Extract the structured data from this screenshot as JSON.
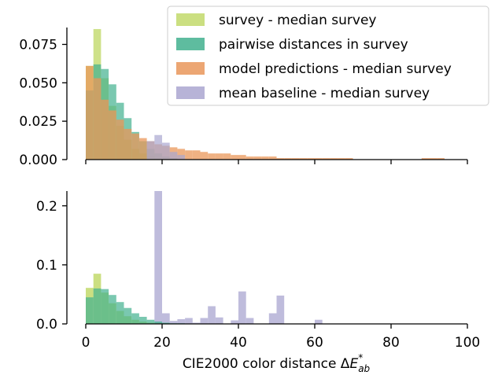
{
  "chart_data": [
    {
      "type": "histogram",
      "panel": "top",
      "bin_width": 2,
      "x_range": [
        0,
        100
      ],
      "ylim": [
        0,
        0.086
      ],
      "yticks": [
        0.0,
        0.025,
        0.05,
        0.075
      ],
      "ytick_labels": [
        "0.000",
        "0.025",
        "0.050",
        "0.075"
      ],
      "legend": {
        "placement": "top-right",
        "entries": [
          {
            "label": "survey - median survey",
            "color": "#c2d96b"
          },
          {
            "label": "pairwise distances in survey",
            "color": "#42b08e"
          },
          {
            "label": "model predictions - median survey",
            "color": "#e9975a"
          },
          {
            "label": "mean baseline - median survey",
            "color": "#aaa6d0"
          }
        ]
      },
      "series": [
        {
          "name": "survey - median survey",
          "color": "#c2d96b",
          "opacity": 0.8,
          "bin_start": 0,
          "values": [
            0.061,
            0.085,
            0.053,
            0.035,
            0.022,
            0.013,
            0.007,
            0.004,
            0.002,
            0.001
          ]
        },
        {
          "name": "pairwise distances in survey",
          "color": "#42b08e",
          "opacity": 0.7,
          "bin_start": 0,
          "values": [
            0.045,
            0.062,
            0.059,
            0.049,
            0.037,
            0.027,
            0.018,
            0.012,
            0.007,
            0.004,
            0.002,
            0.001
          ]
        },
        {
          "name": "model predictions - median survey",
          "color": "#e9975a",
          "opacity": 0.75,
          "bin_start": 0,
          "values": [
            0.061,
            0.053,
            0.039,
            0.032,
            0.026,
            0.02,
            0.017,
            0.014,
            0.012,
            0.01,
            0.009,
            0.008,
            0.007,
            0.006,
            0.006,
            0.005,
            0.004,
            0.004,
            0.004,
            0.003,
            0.003,
            0.002,
            0.002,
            0.002,
            0.002,
            0.001,
            0.001,
            0.001,
            0.001,
            0.001,
            0.001,
            0.001,
            0.001,
            0.001,
            0.001,
            0.0,
            0.0,
            0.0,
            0.0,
            0.0,
            0.0,
            0.0,
            0.0,
            0.0,
            0.001,
            0.001,
            0.001
          ]
        },
        {
          "name": "mean baseline - median survey",
          "color": "#aaa6d0",
          "opacity": 0.7,
          "bin_start": 16,
          "values": [
            0.012,
            0.016,
            0.011,
            0.005,
            0.003
          ]
        }
      ]
    },
    {
      "type": "histogram",
      "panel": "bottom",
      "bin_width": 2,
      "x_range": [
        0,
        100
      ],
      "ylim": [
        0,
        0.225
      ],
      "yticks": [
        0.0,
        0.1,
        0.2
      ],
      "ytick_labels": [
        "0.0",
        "0.1",
        "0.2"
      ],
      "xticks": [
        0,
        20,
        40,
        60,
        80,
        100
      ],
      "xtick_labels": [
        "0",
        "20",
        "40",
        "60",
        "80",
        "100"
      ],
      "xlabel": "CIE2000 color distance ΔE*ab",
      "series": [
        {
          "name": "mean baseline - median survey",
          "color": "#aaa6d0",
          "opacity": 0.75,
          "bin_start": 16,
          "values": [
            0.0,
            0.225,
            0.018,
            0.005,
            0.008,
            0.01,
            0.002,
            0.01,
            0.03,
            0.011,
            0.0,
            0.006,
            0.055,
            0.01,
            0.0,
            0.0,
            0.018,
            0.048,
            0.0,
            0.0,
            0.0,
            0.0,
            0.007
          ]
        },
        {
          "name": "survey - median survey",
          "color": "#c2d96b",
          "opacity": 0.85,
          "bin_start": 0,
          "values": [
            0.061,
            0.085,
            0.053,
            0.035,
            0.022,
            0.013,
            0.007,
            0.004,
            0.002,
            0.001
          ]
        },
        {
          "name": "pairwise distances in survey",
          "color": "#42b08e",
          "opacity": 0.7,
          "bin_start": 0,
          "values": [
            0.045,
            0.06,
            0.059,
            0.049,
            0.037,
            0.027,
            0.018,
            0.012,
            0.007,
            0.004,
            0.002,
            0.001,
            0.001
          ]
        }
      ]
    }
  ]
}
